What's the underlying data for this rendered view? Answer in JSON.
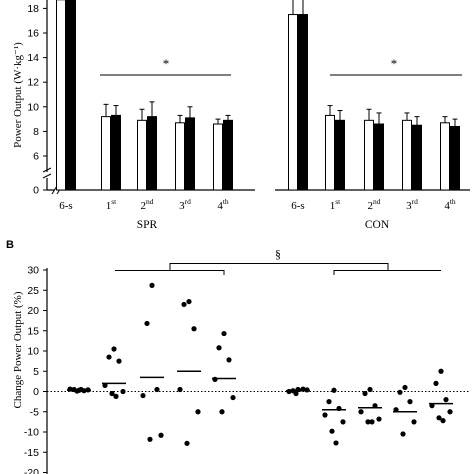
{
  "chart_data": [
    {
      "panel": "A",
      "type": "bar",
      "ylabel": "Power Output (W·kg⁻¹)",
      "yticks": [
        0,
        6,
        8,
        10,
        12,
        14,
        16,
        18
      ],
      "ylim": [
        5,
        19
      ],
      "axis_break": true,
      "groups": [
        {
          "name": "SPR",
          "categories": [
            {
              "main": "6-s",
              "sup": ""
            },
            {
              "main": "1",
              "sup": "st"
            },
            {
              "main": "2",
              "sup": "nd"
            },
            {
              "main": "3",
              "sup": "rd"
            },
            {
              "main": "4",
              "sup": "th"
            }
          ],
          "series": [
            {
              "fill": "#ffffff",
              "values": [
                18.7,
                9.2,
                8.9,
                8.7,
                8.6
              ],
              "errors": [
                0.3,
                1.0,
                0.9,
                0.6,
                0.4
              ]
            },
            {
              "fill": "#000000",
              "values": [
                18.7,
                9.3,
                9.2,
                9.1,
                8.9
              ],
              "errors": [
                0.3,
                0.8,
                1.2,
                0.9,
                0.4
              ]
            }
          ],
          "significance": "*"
        },
        {
          "name": "CON",
          "categories": [
            {
              "main": "6-s",
              "sup": ""
            },
            {
              "main": "1",
              "sup": "st"
            },
            {
              "main": "2",
              "sup": "nd"
            },
            {
              "main": "3",
              "sup": "rd"
            },
            {
              "main": "4",
              "sup": "th"
            }
          ],
          "series": [
            {
              "fill": "#ffffff",
              "values": [
                17.5,
                9.3,
                8.9,
                8.9,
                8.7
              ],
              "errors": [
                1.5,
                0.8,
                0.9,
                0.6,
                0.5
              ]
            },
            {
              "fill": "#000000",
              "values": [
                17.5,
                8.9,
                8.6,
                8.5,
                8.4
              ],
              "errors": [
                1.3,
                0.8,
                0.9,
                0.7,
                0.6
              ]
            }
          ],
          "significance": "*"
        }
      ]
    },
    {
      "panel": "B",
      "type": "scatter",
      "ylabel": "Change Power Output (%)",
      "yticks": [
        -20,
        -15,
        -10,
        -5,
        0,
        5,
        10,
        15,
        20,
        25,
        30
      ],
      "ylim": [
        -20,
        30
      ],
      "zero_line": "dotted",
      "significance": "§",
      "columns": [
        {
          "group": "SPR",
          "points": [
            0.3,
            0.5,
            0.2,
            0.6,
            0.4,
            0.1,
            0.5
          ],
          "mean": 0.3
        },
        {
          "group": "SPR",
          "points": [
            10.5,
            8.5,
            7.5,
            1.5,
            0.0,
            -0.5,
            -1.2
          ],
          "mean": 2.0
        },
        {
          "group": "SPR",
          "points": [
            26.2,
            16.8,
            0.5,
            -1.0,
            -10.8,
            -11.8
          ],
          "mean": 3.5
        },
        {
          "group": "SPR",
          "points": [
            22.2,
            21.5,
            15.5,
            0.5,
            -5.0,
            -12.8
          ],
          "mean": 5.0
        },
        {
          "group": "SPR",
          "points": [
            14.3,
            10.8,
            7.8,
            3.0,
            -1.5,
            -5.0
          ],
          "mean": 3.2
        },
        {
          "group": "CON",
          "points": [
            0.5,
            0.2,
            0.6,
            0.0,
            0.4,
            -0.5
          ],
          "mean": 0.2
        },
        {
          "group": "CON",
          "points": [
            0.3,
            -2.5,
            -4.2,
            -5.8,
            -7.5,
            -9.8,
            -12.7
          ],
          "mean": -4.5
        },
        {
          "group": "CON",
          "points": [
            0.5,
            -0.5,
            -3.5,
            -5.0,
            -6.8,
            -7.5,
            -7.5
          ],
          "mean": -4.0
        },
        {
          "group": "CON",
          "points": [
            1.0,
            -0.2,
            -2.5,
            -4.5,
            -7.5,
            -10.5
          ],
          "mean": -5.0
        },
        {
          "group": "CON",
          "points": [
            5.0,
            2.0,
            -2.0,
            -3.5,
            -5.0,
            -6.5,
            -7.2
          ],
          "mean": -3.0
        }
      ]
    }
  ],
  "labels": {
    "panel_b": "B",
    "group_spr": "SPR",
    "group_con": "CON",
    "sig_a": "*",
    "sig_b": "§"
  }
}
